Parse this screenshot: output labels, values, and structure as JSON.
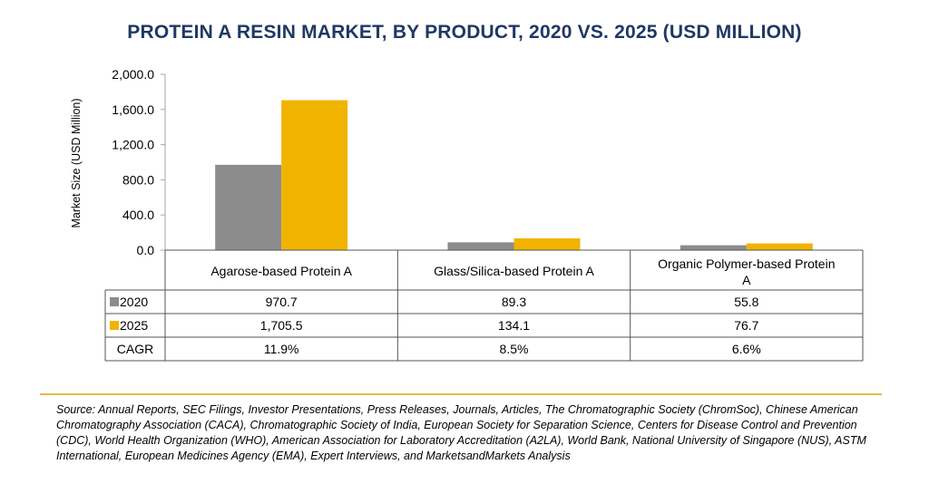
{
  "chart_data": {
    "type": "bar",
    "title": "PROTEIN A RESIN MARKET, BY PRODUCT, 2020 VS. 2025 (USD MILLION)",
    "ylabel": "Market Size (USD Million)",
    "ylim": [
      0,
      2000
    ],
    "yticks": [
      "0.0",
      "400.0",
      "800.0",
      "1,200.0",
      "1,600.0",
      "2,000.0"
    ],
    "categories": [
      "Agarose-based Protein A",
      "Glass/Silica-based Protein A",
      "Organic Polymer-based Protein A"
    ],
    "series": [
      {
        "name": "2020",
        "color": "#8c8c8c",
        "values": [
          970.7,
          89.3,
          55.8
        ],
        "labels": [
          "970.7",
          "89.3",
          "55.8"
        ]
      },
      {
        "name": "2025",
        "color": "#f0b400",
        "values": [
          1705.5,
          134.1,
          76.7
        ],
        "labels": [
          "1,705.5",
          "134.1",
          "76.7"
        ]
      }
    ],
    "cagr": {
      "label": "CAGR",
      "values": [
        "11.9%",
        "8.5%",
        "6.6%"
      ]
    },
    "grid": false,
    "legend": "table-left"
  },
  "source": "Source: Annual Reports, SEC Filings, Investor Presentations, Press Releases, Journals, Articles, The Chromatographic Society (ChromSoc), Chinese American Chromatography Association (CACA), Chromatographic Society of India, European Society for Separation Science, Centers for Disease Control and Prevention (CDC), World Health Organization (WHO), American Association for Laboratory Accreditation (A2LA), World Bank, National University of Singapore (NUS), ASTM International, European Medicines Agency (EMA), Expert Interviews, and MarketsandMarkets Analysis"
}
